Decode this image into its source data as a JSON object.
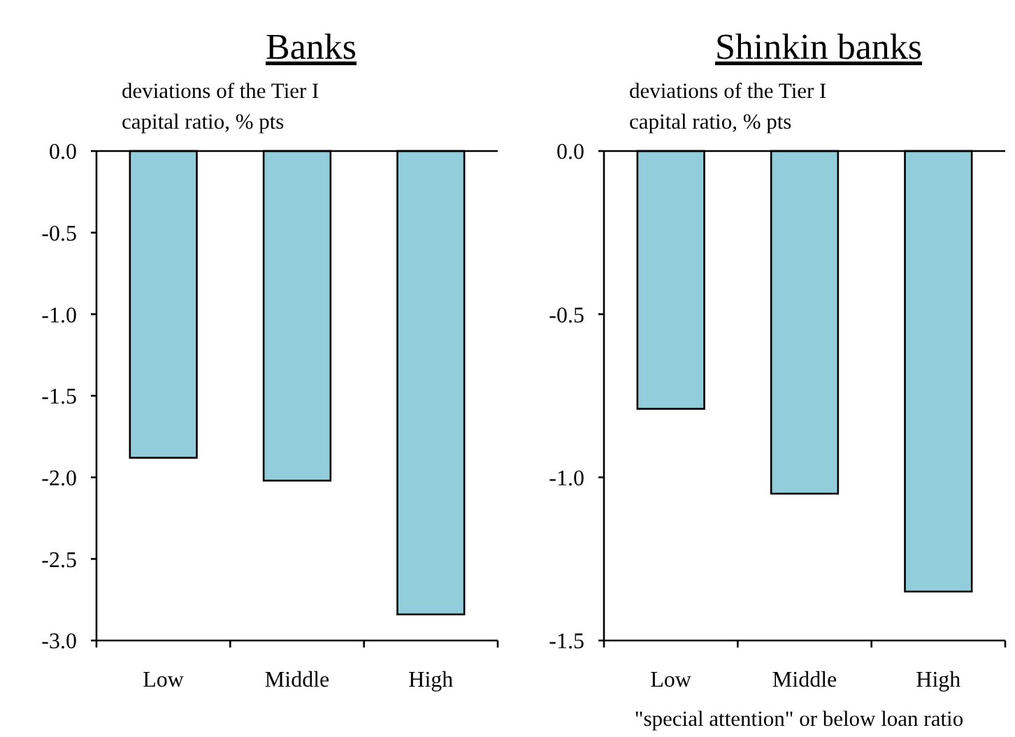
{
  "chart_data": [
    {
      "type": "bar",
      "title": "Banks",
      "ylabel": "deviations of the Tier I capital ratio, % pts",
      "categories": [
        "Low",
        "Middle",
        "High"
      ],
      "values": [
        -1.88,
        -2.02,
        -2.84
      ],
      "color": "#92cddc",
      "ylim": [
        -3.0,
        0.0
      ],
      "yticks": [
        {
          "value": 0,
          "label": "0.0"
        },
        {
          "value": -0.5,
          "label": "-0.5"
        },
        {
          "value": -1,
          "label": "-1.0"
        },
        {
          "value": -1.5,
          "label": "-1.5"
        },
        {
          "value": -2,
          "label": "-2.0"
        },
        {
          "value": -2.5,
          "label": "-2.5"
        },
        {
          "value": -3,
          "label": "-3.0"
        }
      ],
      "grid": false
    },
    {
      "type": "bar",
      "title": "Shinkin banks",
      "ylabel": "deviations of the Tier I capital ratio, % pts",
      "xlabel": "\"special attention\" or below loan ratio",
      "categories": [
        "Low",
        "Middle",
        "High"
      ],
      "values": [
        -0.79,
        -1.05,
        -1.35
      ],
      "color": "#92cddc",
      "ylim": [
        -1.5,
        0.0
      ],
      "yticks": [
        {
          "value": 0,
          "label": "0.0"
        },
        {
          "value": -0.5,
          "label": "-0.5"
        },
        {
          "value": -1,
          "label": "-1.0"
        },
        {
          "value": -1.5,
          "label": "-1.5"
        }
      ],
      "grid": false
    }
  ]
}
